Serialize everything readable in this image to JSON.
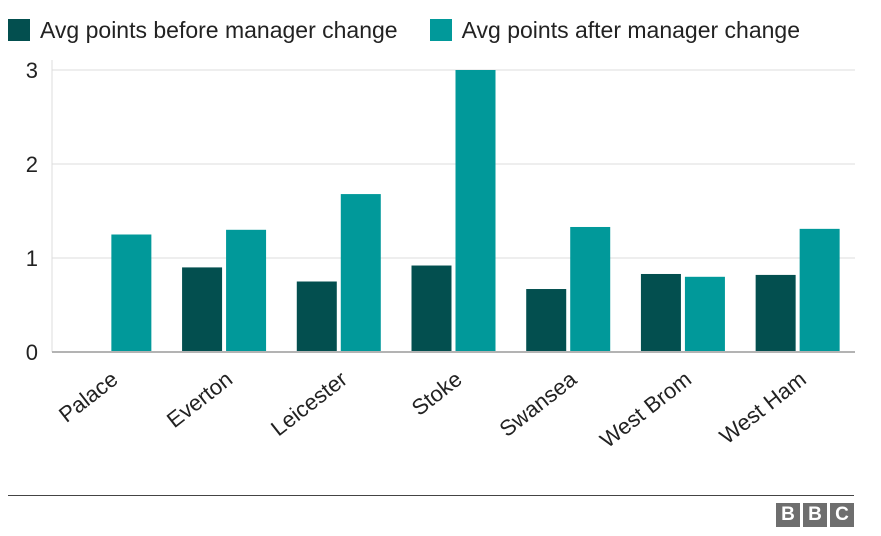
{
  "legend": {
    "before_label": "Avg points before manager change",
    "after_label": "Avg points after manager change"
  },
  "colors": {
    "before": "#034f4f",
    "after": "#01999a",
    "grid": "#dcdcdc",
    "axis": "#b3b3b3",
    "text": "#222222"
  },
  "chart_data": {
    "type": "bar",
    "categories": [
      "Palace",
      "Everton",
      "Leicester",
      "Stoke",
      "Swansea",
      "West Brom",
      "West Ham"
    ],
    "series": [
      {
        "name": "Avg points before manager change",
        "values": [
          null,
          0.9,
          0.75,
          0.92,
          0.67,
          0.83,
          0.82
        ]
      },
      {
        "name": "Avg points after manager change",
        "values": [
          1.25,
          1.3,
          1.68,
          3.0,
          1.33,
          0.8,
          1.31
        ]
      }
    ],
    "yticks": [
      0,
      1,
      2,
      3
    ],
    "ylim": [
      0,
      3
    ],
    "title": "",
    "xlabel": "",
    "ylabel": "",
    "grid": true,
    "legend_position": "top-left"
  },
  "branding": {
    "logo_letters": [
      "B",
      "B",
      "C"
    ]
  }
}
